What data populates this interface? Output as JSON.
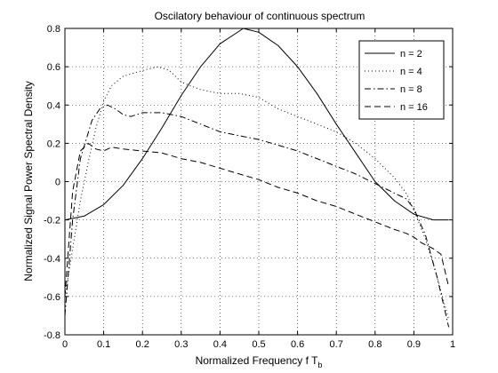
{
  "chart_data": {
    "type": "line",
    "title": "Oscilatory behaviour of continuous spectrum",
    "xlabel": "Normalized Frequency f T",
    "xlabel_subscript": "b",
    "ylabel": "Normalized Signal Power Spectral Density",
    "xlim": [
      0,
      1
    ],
    "ylim": [
      -0.8,
      0.8
    ],
    "xticks": [
      "0",
      "0.1",
      "0.2",
      "0.3",
      "0.4",
      "0.5",
      "0.6",
      "0.7",
      "0.8",
      "0.9",
      "1"
    ],
    "yticks": [
      "-0.8",
      "-0.6",
      "-0.4",
      "-0.2",
      "0",
      "0.2",
      "0.4",
      "0.6",
      "0.8"
    ],
    "grid": true,
    "legend_position": "top-right",
    "series": [
      {
        "name": "n = 2",
        "style": "solid",
        "x": [
          0,
          0.05,
          0.1,
          0.15,
          0.2,
          0.25,
          0.3,
          0.35,
          0.4,
          0.46,
          0.5,
          0.55,
          0.6,
          0.65,
          0.7,
          0.75,
          0.8,
          0.85,
          0.9,
          0.95,
          0.99
        ],
        "y": [
          -0.2,
          -0.18,
          -0.12,
          -0.02,
          0.12,
          0.28,
          0.45,
          0.6,
          0.72,
          0.8,
          0.78,
          0.71,
          0.6,
          0.46,
          0.3,
          0.15,
          0.0,
          -0.1,
          -0.17,
          -0.2,
          -0.2
        ]
      },
      {
        "name": "n = 4",
        "style": "dotted",
        "x": [
          0,
          0.02,
          0.04,
          0.06,
          0.08,
          0.1,
          0.12,
          0.15,
          0.2,
          0.24,
          0.27,
          0.3,
          0.35,
          0.4,
          0.45,
          0.5,
          0.55,
          0.6,
          0.65,
          0.7,
          0.75,
          0.8,
          0.85,
          0.88,
          0.9,
          0.93,
          0.96,
          0.99
        ],
        "y": [
          -0.6,
          -0.35,
          -0.1,
          0.1,
          0.28,
          0.42,
          0.5,
          0.55,
          0.58,
          0.6,
          0.58,
          0.52,
          0.48,
          0.46,
          0.46,
          0.44,
          0.38,
          0.34,
          0.3,
          0.26,
          0.2,
          0.12,
          0.02,
          -0.06,
          -0.15,
          -0.3,
          -0.5,
          -0.72
        ]
      },
      {
        "name": "n = 8",
        "style": "dashdot",
        "x": [
          0,
          0.02,
          0.04,
          0.07,
          0.09,
          0.11,
          0.13,
          0.15,
          0.17,
          0.2,
          0.25,
          0.3,
          0.35,
          0.4,
          0.45,
          0.5,
          0.55,
          0.6,
          0.65,
          0.7,
          0.75,
          0.8,
          0.85,
          0.88,
          0.9,
          0.93,
          0.96,
          0.99
        ],
        "y": [
          -0.7,
          -0.2,
          0.12,
          0.32,
          0.38,
          0.4,
          0.38,
          0.35,
          0.34,
          0.36,
          0.36,
          0.34,
          0.3,
          0.26,
          0.24,
          0.22,
          0.19,
          0.16,
          0.12,
          0.08,
          0.04,
          -0.01,
          -0.06,
          -0.09,
          -0.14,
          -0.28,
          -0.5,
          -0.76
        ]
      },
      {
        "name": "n = 16",
        "style": "dashed",
        "x": [
          0,
          0.02,
          0.04,
          0.06,
          0.08,
          0.1,
          0.12,
          0.15,
          0.2,
          0.25,
          0.3,
          0.35,
          0.4,
          0.45,
          0.5,
          0.55,
          0.6,
          0.65,
          0.7,
          0.75,
          0.8,
          0.85,
          0.88,
          0.9,
          0.92,
          0.95,
          0.97,
          0.99
        ],
        "y": [
          -0.6,
          -0.05,
          0.16,
          0.2,
          0.17,
          0.16,
          0.18,
          0.17,
          0.16,
          0.15,
          0.12,
          0.1,
          0.07,
          0.04,
          0.01,
          -0.03,
          -0.06,
          -0.1,
          -0.13,
          -0.17,
          -0.21,
          -0.25,
          -0.27,
          -0.29,
          -0.32,
          -0.35,
          -0.38,
          -0.55
        ]
      }
    ]
  }
}
